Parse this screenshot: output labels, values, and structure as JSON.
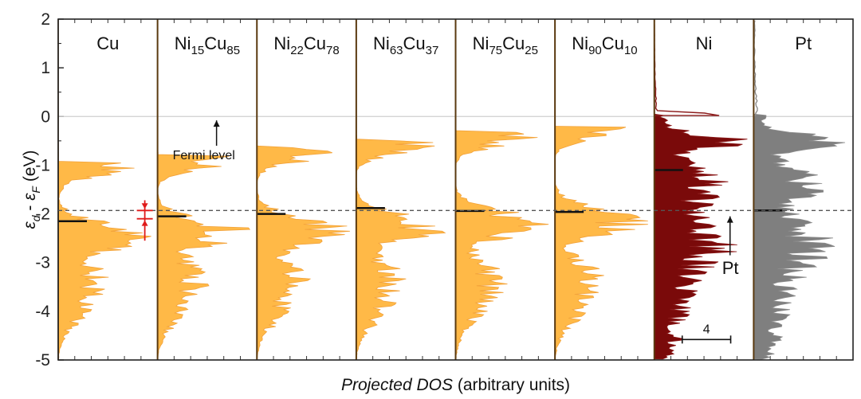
{
  "chart_data": {
    "type": "area",
    "title": "",
    "xlabel_italic": "Projected DOS",
    "xlabel_rest": " (arbitrary units)",
    "ylabel_parts": [
      "ε",
      "d",
      " - ",
      "ε",
      "F",
      " (eV)"
    ],
    "ylim": [
      -5,
      2
    ],
    "yticks": [
      2,
      1,
      0,
      -1,
      -2,
      -3,
      -4,
      -5
    ],
    "ytick_labels": [
      "2",
      "1",
      "0",
      "-1",
      "-2",
      "-3",
      "-4",
      "-5"
    ],
    "fermi_level": 0,
    "reference_line_pt_d_band_center": -1.93,
    "panels": [
      {
        "name": "Cu",
        "base": "Cu",
        "sub1": "",
        "el2": "",
        "sub2": "",
        "d_band_center": -2.15,
        "fill": "#ffb947",
        "edge": "#f2a23a",
        "title_color": "#111111"
      },
      {
        "name": "Ni15Cu85",
        "base": "Ni",
        "sub1": "15",
        "el2": "Cu",
        "sub2": "85",
        "d_band_center": -2.05,
        "fill": "#ffb947",
        "edge": "#f2a23a",
        "title_color": "#111111"
      },
      {
        "name": "Ni22Cu78",
        "base": "Ni",
        "sub1": "22",
        "el2": "Cu",
        "sub2": "78",
        "d_band_center": -2.0,
        "fill": "#ffb947",
        "edge": "#f2a23a",
        "title_color": "#111111"
      },
      {
        "name": "Ni63Cu37",
        "base": "Ni",
        "sub1": "63",
        "el2": "Cu",
        "sub2": "37",
        "d_band_center": -1.88,
        "fill": "#ffb947",
        "edge": "#f2a23a",
        "title_color": "#111111"
      },
      {
        "name": "Ni75Cu25",
        "base": "Ni",
        "sub1": "75",
        "el2": "Cu",
        "sub2": "25",
        "d_band_center": -1.94,
        "fill": "#ffb947",
        "edge": "#f2a23a",
        "title_color": "#111111"
      },
      {
        "name": "Ni90Cu10",
        "base": "Ni",
        "sub1": "90",
        "el2": "Cu",
        "sub2": "10",
        "d_band_center": -1.96,
        "fill": "#ffb947",
        "edge": "#f2a23a",
        "title_color": "#111111"
      },
      {
        "name": "Ni",
        "base": "Ni",
        "sub1": "",
        "el2": "",
        "sub2": "",
        "d_band_center": -1.1,
        "fill": "#7a0a0a",
        "edge": "#8b1a1a",
        "title_color": "#111111"
      },
      {
        "name": "Pt",
        "base": "Pt",
        "sub1": "",
        "el2": "",
        "sub2": "",
        "d_band_center": -1.93,
        "fill": "#7f7f7f",
        "edge": "#8c8c8c",
        "title_color": "#9a9a9a"
      }
    ],
    "annotations": {
      "fermi_label": "Fermi level",
      "pt_label": "Pt",
      "scale_bar_label": "4",
      "scale_bar_dos_units": 4
    },
    "grid": false,
    "legend": "none"
  }
}
